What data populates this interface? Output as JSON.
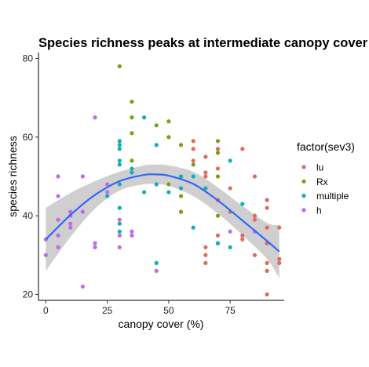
{
  "chart_data": {
    "type": "scatter",
    "title": "Species richness peaks at intermediate canopy cover",
    "xlabel": "canopy cover (%)",
    "ylabel": "species richness",
    "xlim": [
      -3,
      97
    ],
    "ylim": [
      18.5,
      81.5
    ],
    "x_ticks": [
      0,
      25,
      50,
      75
    ],
    "y_ticks": [
      20,
      40,
      60,
      80
    ],
    "grid": false,
    "legend": {
      "title": "factor(sev3)",
      "placement": "right",
      "entries": [
        {
          "name": "lu",
          "color": "#E06A5E"
        },
        {
          "name": "Rx",
          "color": "#72A311"
        },
        {
          "name": "multiple",
          "color": "#13ADB5"
        },
        {
          "name": "h",
          "color": "#BF6BE8"
        }
      ]
    },
    "series": [
      {
        "name": "lu",
        "color": "#E06A5E",
        "points": [
          [
            60,
            59
          ],
          [
            60,
            57
          ],
          [
            60,
            54
          ],
          [
            65,
            55
          ],
          [
            65,
            50
          ],
          [
            65,
            51
          ],
          [
            65,
            32
          ],
          [
            65,
            30
          ],
          [
            65,
            28
          ],
          [
            70,
            57
          ],
          [
            70,
            52
          ],
          [
            70,
            35
          ],
          [
            70,
            33
          ],
          [
            75,
            47
          ],
          [
            80,
            57
          ],
          [
            80,
            34
          ],
          [
            80,
            35
          ],
          [
            85,
            50
          ],
          [
            85,
            39
          ],
          [
            85,
            40
          ],
          [
            85,
            30
          ],
          [
            90,
            44
          ],
          [
            90,
            42
          ],
          [
            90,
            37
          ],
          [
            90,
            33
          ],
          [
            90,
            28
          ],
          [
            90,
            26
          ],
          [
            90,
            20
          ],
          [
            95,
            37
          ],
          [
            95,
            29
          ],
          [
            95,
            28
          ],
          [
            70,
            44
          ],
          [
            75,
            41
          ]
        ]
      },
      {
        "name": "Rx",
        "color": "#72A311",
        "points": [
          [
            30,
            78
          ],
          [
            35,
            69
          ],
          [
            35,
            65
          ],
          [
            35,
            61
          ],
          [
            35,
            54
          ],
          [
            45,
            63
          ],
          [
            50,
            64
          ],
          [
            50,
            60
          ],
          [
            50,
            48
          ],
          [
            55,
            58
          ],
          [
            55,
            45
          ],
          [
            55,
            41
          ],
          [
            60,
            53
          ],
          [
            70,
            59
          ],
          [
            70,
            56
          ],
          [
            70,
            50
          ],
          [
            70,
            40
          ]
        ]
      },
      {
        "name": "multiple",
        "color": "#13ADB5",
        "points": [
          [
            30,
            59
          ],
          [
            30,
            58
          ],
          [
            30,
            57
          ],
          [
            30,
            54
          ],
          [
            30,
            53
          ],
          [
            30,
            48
          ],
          [
            30,
            42
          ],
          [
            35,
            52
          ],
          [
            35,
            51
          ],
          [
            40,
            65
          ],
          [
            40,
            46
          ],
          [
            45,
            58
          ],
          [
            45,
            48
          ],
          [
            45,
            28
          ],
          [
            50,
            46
          ],
          [
            55,
            50
          ],
          [
            60,
            50
          ],
          [
            60,
            37
          ],
          [
            65,
            47
          ],
          [
            70,
            33
          ],
          [
            75,
            54
          ],
          [
            75,
            32
          ],
          [
            80,
            43
          ],
          [
            25,
            45
          ],
          [
            30,
            38
          ],
          [
            30,
            36
          ],
          [
            55,
            47
          ]
        ]
      },
      {
        "name": "h",
        "color": "#BF6BE8",
        "points": [
          [
            0,
            30
          ],
          [
            0,
            34
          ],
          [
            5,
            50
          ],
          [
            5,
            45
          ],
          [
            5,
            39
          ],
          [
            5,
            35
          ],
          [
            5,
            32
          ],
          [
            10,
            41
          ],
          [
            10,
            40
          ],
          [
            10,
            38
          ],
          [
            10,
            37
          ],
          [
            15,
            50
          ],
          [
            15,
            41
          ],
          [
            15,
            22
          ],
          [
            20,
            65
          ],
          [
            20,
            33
          ],
          [
            20,
            32
          ],
          [
            25,
            48
          ],
          [
            25,
            46
          ],
          [
            30,
            39
          ],
          [
            30,
            35
          ],
          [
            30,
            32
          ],
          [
            35,
            36
          ],
          [
            35,
            35
          ],
          [
            45,
            26
          ],
          [
            75,
            36
          ],
          [
            85,
            36
          ]
        ]
      }
    ],
    "fit": {
      "label": "",
      "curve": [
        [
          0,
          34
        ],
        [
          10,
          40.2
        ],
        [
          20,
          45.3
        ],
        [
          30,
          48.8
        ],
        [
          40,
          50.4
        ],
        [
          45,
          50.5
        ],
        [
          50,
          50.2
        ],
        [
          60,
          48.1
        ],
        [
          70,
          43.9
        ],
        [
          80,
          38.8
        ],
        [
          90,
          33.6
        ],
        [
          95,
          30.9
        ]
      ],
      "ci_upper": [
        [
          0,
          42
        ],
        [
          10,
          45.8
        ],
        [
          20,
          48.8
        ],
        [
          30,
          51.2
        ],
        [
          40,
          52.8
        ],
        [
          45,
          53
        ],
        [
          50,
          52.8
        ],
        [
          60,
          51.2
        ],
        [
          70,
          47.2
        ],
        [
          80,
          42.5
        ],
        [
          90,
          38.2
        ],
        [
          95,
          37.6
        ]
      ],
      "ci_lower": [
        [
          0,
          26
        ],
        [
          10,
          34.6
        ],
        [
          20,
          41.8
        ],
        [
          30,
          46.4
        ],
        [
          40,
          48
        ],
        [
          45,
          48
        ],
        [
          50,
          47.6
        ],
        [
          60,
          45
        ],
        [
          70,
          40.6
        ],
        [
          80,
          35.1
        ],
        [
          90,
          29
        ],
        [
          95,
          24.2
        ]
      ]
    }
  }
}
